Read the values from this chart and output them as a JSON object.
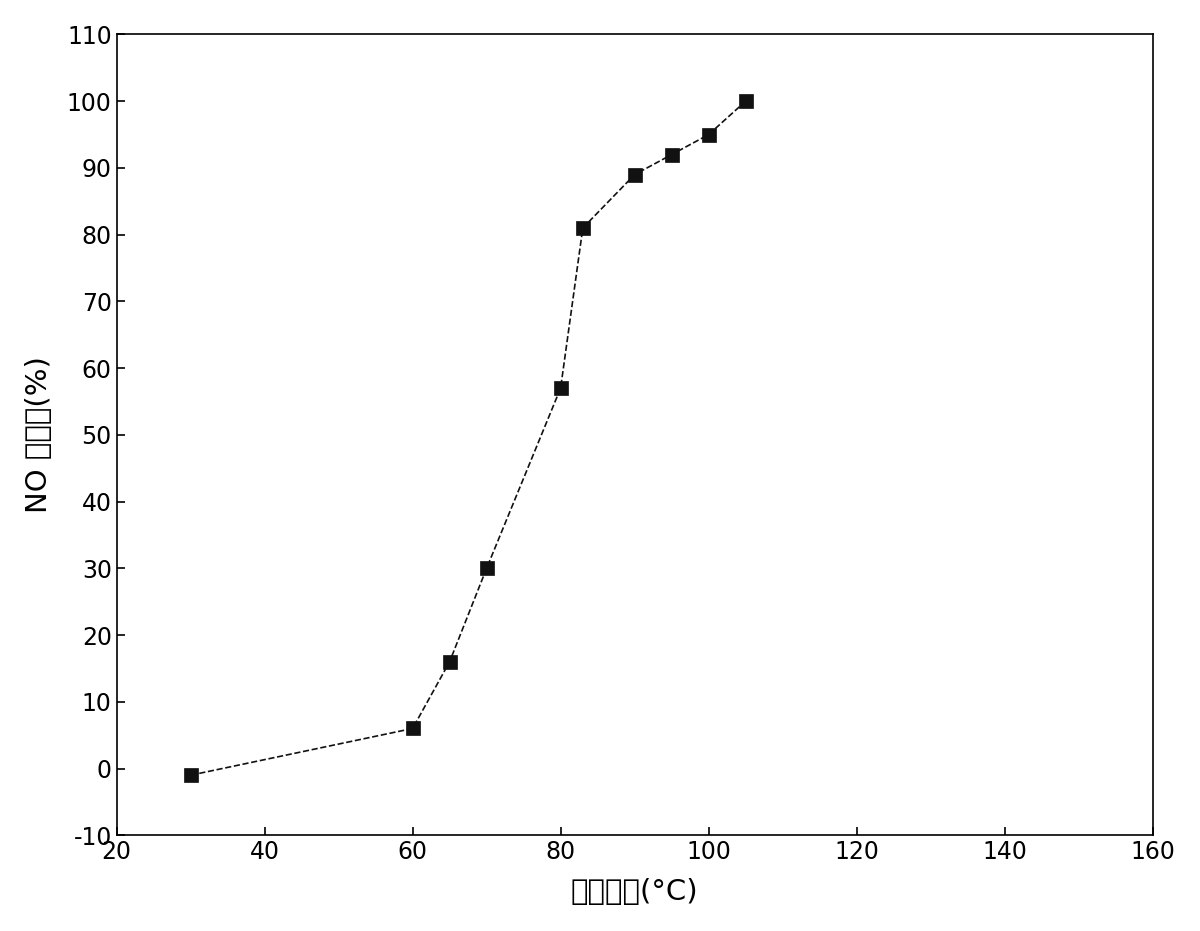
{
  "x": [
    30,
    60,
    65,
    70,
    80,
    83,
    90,
    95,
    100,
    105
  ],
  "y": [
    -1,
    6,
    16,
    30,
    57,
    81,
    89,
    92,
    95,
    100
  ],
  "xlabel": "反应温度(°C)",
  "ylabel": "NO 脲除率(%)",
  "xlim": [
    20,
    160
  ],
  "ylim": [
    -10,
    110
  ],
  "xticks": [
    20,
    40,
    60,
    80,
    100,
    120,
    140,
    160
  ],
  "yticks": [
    -10,
    0,
    10,
    20,
    30,
    40,
    50,
    60,
    70,
    80,
    90,
    100,
    110
  ],
  "line_color": "#111111",
  "marker_color": "#111111",
  "marker": "s",
  "marker_size": 10,
  "line_style": "--",
  "line_width": 1.2,
  "xlabel_fontsize": 21,
  "ylabel_fontsize": 21,
  "tick_fontsize": 17,
  "background_color": "#ffffff",
  "plot_bg_color": "#ffffff"
}
